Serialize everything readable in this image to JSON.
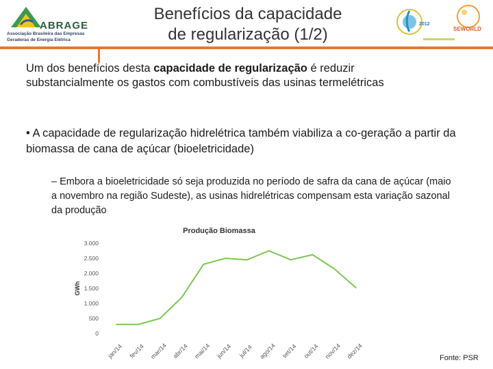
{
  "header": {
    "logo_name": "ABRAGE",
    "logo_line1": "Associação Brasileira das Empresas",
    "logo_line2": "Geradoras de Energia Elétrica",
    "title_line1": "Benefícios da capacidade",
    "title_line2": "de regularização (1/2)",
    "right_logo_text1": "SEWORLD",
    "right_logo_year": "2012",
    "accent_color": "#e8772e"
  },
  "body": {
    "p1_pre": "Um dos benefícios desta ",
    "p1_bold": "capacidade de regularização",
    "p1_post": " é reduzir substancialmente os gastos com combustíveis das usinas termelétricas",
    "p2": "• A capacidade de regularização hidrelétrica também viabiliza a co-geração a partir da biomassa de cana de açúcar (bioeletricidade)",
    "p3": "– Embora a bioeletricidade só seja produzida no período de safra da cana de açúcar (maio a novembro na região Sudeste), as usinas hidrelétricas compensam esta variação sazonal da produção"
  },
  "source": "Fonte: PSR",
  "chart_data": {
    "type": "line",
    "title": "Produção Biomassa",
    "xlabel": "",
    "ylabel": "GWh",
    "categories": [
      "jan/14",
      "fev/14",
      "mar/14",
      "abr/14",
      "mai/14",
      "jun/14",
      "jul/14",
      "ago/14",
      "set/14",
      "out/14",
      "nov/14",
      "dez/14"
    ],
    "series": [
      {
        "values": [
          300,
          300,
          500,
          1200,
          2300,
          2500,
          2450,
          2750,
          2450,
          2620,
          2150,
          1520
        ],
        "color": "#7ac74f"
      }
    ],
    "ylim": [
      0,
      3000
    ],
    "yticks": [
      0,
      500,
      1000,
      1500,
      2000,
      2500,
      3000
    ],
    "ytick_labels": [
      "0",
      "500",
      "1.000",
      "1.500",
      "2.000",
      "2.500",
      "3.000"
    ],
    "grid": false,
    "legend": "none"
  }
}
